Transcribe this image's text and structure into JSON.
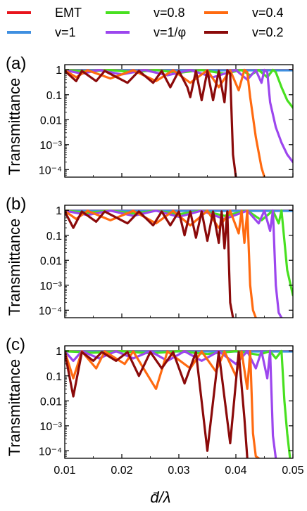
{
  "chart_data": {
    "type": "line",
    "legend": {
      "placement": "top",
      "entries": [
        {
          "name": "EMT",
          "color": "#e8141c"
        },
        {
          "name": "v=1",
          "color": "#3f8fe0"
        },
        {
          "name": "v=0.8",
          "color": "#48e020"
        },
        {
          "name": "v=1/φ",
          "color": "#9c46ee"
        },
        {
          "name": "v=0.4",
          "color": "#ff6a10"
        },
        {
          "name": "v=0.2",
          "color": "#8b0a0a"
        }
      ]
    },
    "xlabel": "d̄/λ",
    "ylabel": "Transmittance",
    "xlim": [
      0.01,
      0.05
    ],
    "xticks": [
      "0.01",
      "0.02",
      "0.03",
      "0.04",
      "0.05"
    ],
    "yscale": "log",
    "ylim": [
      5e-05,
      1.6
    ],
    "yticks": [
      "1",
      "0.1",
      "0.01",
      "10⁻³",
      "10⁻⁴"
    ],
    "grid": false,
    "panels": [
      {
        "label": "(a)",
        "series": [
          {
            "name": "EMT",
            "color": "#e8141c",
            "x": [
              0.01,
              0.05
            ],
            "y": [
              0.97,
              0.97
            ]
          },
          {
            "name": "v=1",
            "color": "#3f8fe0",
            "x": [
              0.01,
              0.05
            ],
            "y": [
              0.95,
              0.95
            ]
          },
          {
            "name": "v=0.8",
            "color": "#48e020",
            "x": [
              0.01,
              0.014,
              0.018,
              0.022,
              0.026,
              0.03,
              0.034,
              0.038,
              0.041,
              0.0425,
              0.044,
              0.0455,
              0.0465,
              0.047,
              0.048,
              0.049,
              0.05
            ],
            "y": [
              0.98,
              0.85,
              0.98,
              0.8,
              0.98,
              0.75,
              0.98,
              0.7,
              0.98,
              0.6,
              0.98,
              0.5,
              0.99,
              0.8,
              0.2,
              0.06,
              0.03
            ]
          },
          {
            "name": "v=1/φ",
            "color": "#9c46ee",
            "x": [
              0.01,
              0.013,
              0.016,
              0.02,
              0.024,
              0.028,
              0.032,
              0.036,
              0.04,
              0.042,
              0.0435,
              0.0445,
              0.045,
              0.0455,
              0.046,
              0.047,
              0.048,
              0.049,
              0.05
            ],
            "y": [
              0.97,
              0.7,
              0.97,
              0.65,
              0.97,
              0.6,
              0.97,
              0.5,
              0.97,
              0.4,
              0.97,
              0.3,
              0.99,
              0.8,
              0.05,
              0.005,
              0.0012,
              0.0004,
              0.0002
            ]
          },
          {
            "name": "v=0.4",
            "color": "#ff6a10",
            "x": [
              0.01,
              0.012,
              0.014,
              0.018,
              0.022,
              0.026,
              0.029,
              0.032,
              0.035,
              0.037,
              0.039,
              0.0405,
              0.0415,
              0.042,
              0.0425,
              0.0435,
              0.0445,
              0.045
            ],
            "y": [
              0.95,
              0.5,
              0.95,
              0.45,
              0.95,
              0.35,
              0.95,
              0.3,
              0.95,
              0.2,
              0.95,
              0.15,
              0.99,
              0.8,
              0.08,
              0.002,
              0.00012,
              5e-05
            ]
          },
          {
            "name": "v=0.2",
            "color": "#8b0a0a",
            "x": [
              0.01,
              0.012,
              0.013,
              0.0155,
              0.017,
              0.021,
              0.023,
              0.0255,
              0.027,
              0.0285,
              0.03,
              0.0315,
              0.032,
              0.033,
              0.034,
              0.035,
              0.036,
              0.037,
              0.038,
              0.0385,
              0.039,
              0.0395,
              0.04
            ],
            "y": [
              0.9,
              0.35,
              0.9,
              0.35,
              0.9,
              0.3,
              0.9,
              0.3,
              0.9,
              0.2,
              0.9,
              0.2,
              0.08,
              0.9,
              0.06,
              0.9,
              0.06,
              0.9,
              0.05,
              0.95,
              0.7,
              0.0004,
              5e-05
            ]
          }
        ]
      },
      {
        "label": "(b)",
        "series": [
          {
            "name": "EMT",
            "color": "#e8141c",
            "x": [
              0.01,
              0.05
            ],
            "y": [
              0.97,
              0.97
            ]
          },
          {
            "name": "v=1",
            "color": "#3f8fe0",
            "x": [
              0.01,
              0.05
            ],
            "y": [
              0.95,
              0.95
            ]
          },
          {
            "name": "v=0.8",
            "color": "#48e020",
            "x": [
              0.01,
              0.014,
              0.018,
              0.022,
              0.026,
              0.03,
              0.034,
              0.038,
              0.042,
              0.0445,
              0.0465,
              0.0475,
              0.048,
              0.049,
              0.05
            ],
            "y": [
              0.98,
              0.8,
              0.98,
              0.75,
              0.98,
              0.7,
              0.98,
              0.6,
              0.98,
              0.4,
              0.98,
              0.3,
              0.99,
              0.004,
              0.0004
            ]
          },
          {
            "name": "v=1/φ",
            "color": "#9c46ee",
            "x": [
              0.01,
              0.014,
              0.018,
              0.022,
              0.026,
              0.03,
              0.034,
              0.038,
              0.042,
              0.044,
              0.045,
              0.046,
              0.0465,
              0.047,
              0.0475,
              0.048
            ],
            "y": [
              0.97,
              0.65,
              0.97,
              0.6,
              0.97,
              0.55,
              0.97,
              0.45,
              0.97,
              0.3,
              0.97,
              0.15,
              0.99,
              0.001,
              8e-05,
              5e-05
            ]
          },
          {
            "name": "v=0.4",
            "color": "#ff6a10",
            "x": [
              0.01,
              0.012,
              0.014,
              0.018,
              0.022,
              0.026,
              0.029,
              0.032,
              0.035,
              0.037,
              0.039,
              0.0405,
              0.041,
              0.0415,
              0.042,
              0.0425,
              0.043,
              0.0435
            ],
            "y": [
              0.95,
              0.45,
              0.95,
              0.4,
              0.95,
              0.3,
              0.95,
              0.25,
              0.95,
              0.2,
              0.95,
              0.12,
              0.95,
              0.05,
              0.95,
              0.001,
              0.0001,
              5e-05
            ]
          },
          {
            "name": "v=0.2",
            "color": "#8b0a0a",
            "x": [
              0.01,
              0.0115,
              0.013,
              0.0155,
              0.017,
              0.021,
              0.023,
              0.0255,
              0.027,
              0.0285,
              0.03,
              0.031,
              0.032,
              0.033,
              0.034,
              0.035,
              0.036,
              0.037,
              0.0375,
              0.038,
              0.0385,
              0.039,
              0.0395
            ],
            "y": [
              0.9,
              0.2,
              0.9,
              0.35,
              0.9,
              0.3,
              0.9,
              0.25,
              0.9,
              0.25,
              0.9,
              0.1,
              0.9,
              0.08,
              0.9,
              0.06,
              0.9,
              0.05,
              0.9,
              0.03,
              0.9,
              0.0002,
              5e-05
            ]
          }
        ]
      },
      {
        "label": "(c)",
        "series": [
          {
            "name": "EMT",
            "color": "#e8141c",
            "x": [
              0.01,
              0.05
            ],
            "y": [
              0.97,
              0.97
            ]
          },
          {
            "name": "v=1",
            "color": "#3f8fe0",
            "x": [
              0.01,
              0.05
            ],
            "y": [
              0.95,
              0.95
            ]
          },
          {
            "name": "v=0.8",
            "color": "#48e020",
            "x": [
              0.01,
              0.015,
              0.02,
              0.025,
              0.03,
              0.035,
              0.04,
              0.044,
              0.046,
              0.047,
              0.048,
              0.0485,
              0.049,
              0.0495
            ],
            "y": [
              0.98,
              0.85,
              0.98,
              0.8,
              0.98,
              0.75,
              0.98,
              0.7,
              0.98,
              0.5,
              0.99,
              0.01,
              0.0005,
              5e-05
            ]
          },
          {
            "name": "v=1/φ",
            "color": "#9c46ee",
            "x": [
              0.01,
              0.0115,
              0.013,
              0.016,
              0.019,
              0.022,
              0.025,
              0.028,
              0.031,
              0.034,
              0.037,
              0.04,
              0.042,
              0.0435,
              0.0445,
              0.0455,
              0.046,
              0.0465,
              0.047
            ],
            "y": [
              0.97,
              0.4,
              0.97,
              0.5,
              0.97,
              0.5,
              0.97,
              0.4,
              0.97,
              0.4,
              0.97,
              0.3,
              0.97,
              0.2,
              0.97,
              0.08,
              0.99,
              0.0004,
              5e-05
            ]
          },
          {
            "name": "v=0.4",
            "color": "#ff6a10",
            "x": [
              0.01,
              0.0115,
              0.013,
              0.0155,
              0.017,
              0.0205,
              0.022,
              0.026,
              0.028,
              0.032,
              0.034,
              0.0365,
              0.038,
              0.04,
              0.041,
              0.042,
              0.0425,
              0.043,
              0.0435,
              0.044
            ],
            "y": [
              0.95,
              0.08,
              0.95,
              0.2,
              0.95,
              0.3,
              0.95,
              0.03,
              0.95,
              0.2,
              0.95,
              0.15,
              0.95,
              0.1,
              0.95,
              0.03,
              0.95,
              0.0005,
              6e-05,
              5e-05
            ]
          },
          {
            "name": "v=0.2",
            "color": "#8b0a0a",
            "x": [
              0.01,
              0.0115,
              0.013,
              0.015,
              0.0165,
              0.019,
              0.021,
              0.023,
              0.025,
              0.027,
              0.029,
              0.031,
              0.033,
              0.035,
              0.037,
              0.039,
              0.0405,
              0.0415,
              0.042
            ],
            "y": [
              0.9,
              0.015,
              0.9,
              0.4,
              0.9,
              0.4,
              0.9,
              0.1,
              0.9,
              0.2,
              0.9,
              0.05,
              0.9,
              0.0001,
              0.9,
              0.0002,
              0.9,
              0.002,
              5e-05
            ]
          }
        ]
      }
    ]
  }
}
